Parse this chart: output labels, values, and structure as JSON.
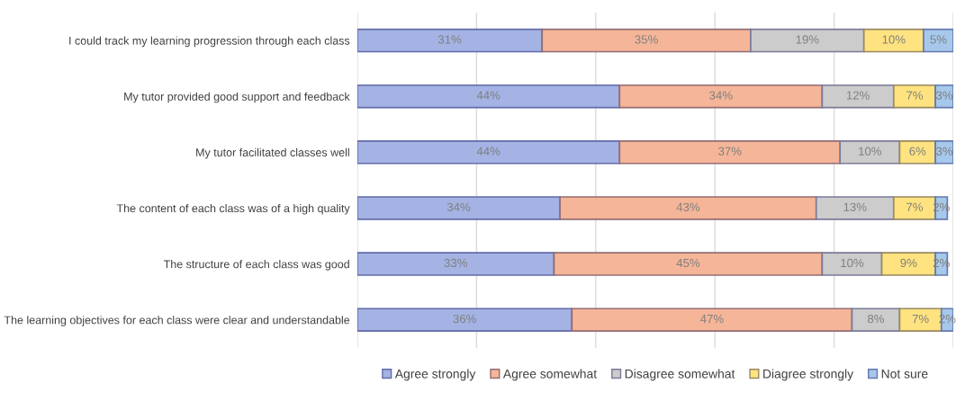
{
  "chart_data": {
    "type": "bar",
    "orientation": "horizontal",
    "stacked": true,
    "categories": [
      "I could track my learning progression through each class",
      "My tutor provided good support and feedback",
      "My tutor facilitated classes well",
      "The content of each class was of a high quality",
      "The structure of each class was good",
      "The learning objectives for each class were clear and understandable"
    ],
    "series": [
      {
        "name": "Agree strongly",
        "color": "#a4b3e3",
        "values": [
          31,
          44,
          44,
          34,
          33,
          36
        ],
        "value_labels": [
          "31%",
          "44%",
          "44%",
          "34%",
          "33%",
          "36%"
        ]
      },
      {
        "name": "Agree somewhat",
        "color": "#f5b598",
        "values": [
          35,
          34,
          37,
          43,
          45,
          47
        ],
        "value_labels": [
          "35%",
          "34%",
          "37%",
          "43%",
          "45%",
          "47%"
        ]
      },
      {
        "name": "Disagree somewhat",
        "color": "#cccccc",
        "values": [
          19,
          12,
          10,
          13,
          10,
          8
        ],
        "value_labels": [
          "19%",
          "12%",
          "10%",
          "13%",
          "10%",
          "8%"
        ]
      },
      {
        "name": "Diagree strongly",
        "color": "#ffe380",
        "values": [
          10,
          7,
          6,
          7,
          9,
          7
        ],
        "value_labels": [
          "10%",
          "7%",
          "6%",
          "7%",
          "9%",
          "7%"
        ]
      },
      {
        "name": "Not sure",
        "color": "#a6c8ea",
        "values": [
          5,
          3,
          3,
          2,
          2,
          2
        ],
        "value_labels": [
          "5%",
          "3%",
          "3%",
          "2%",
          "2%",
          "2%"
        ]
      }
    ],
    "tick_labels": "y",
    "grid": "x",
    "legend": "bottom"
  }
}
